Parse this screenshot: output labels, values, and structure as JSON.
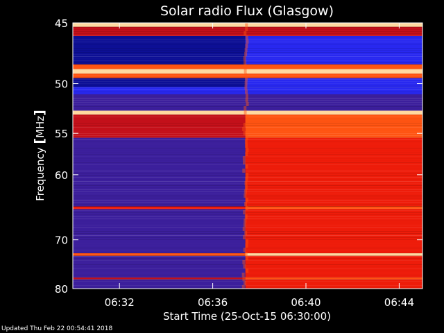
{
  "chart_data": {
    "type": "heatmap",
    "title": "Solar radio Flux (Glasgow)",
    "xlabel": "Start Time (25-Oct-15 06:30:00)",
    "ylabel_prefix": "Frequency ",
    "ylabel_unit": "MHz",
    "x_ticks": [
      "06:32",
      "06:36",
      "06:40",
      "06:44"
    ],
    "x_tick_minutes": [
      2,
      6,
      10,
      14
    ],
    "xlim_minutes": [
      0,
      15
    ],
    "y_ticks": [
      "45",
      "50",
      "55",
      "60",
      "70",
      "80"
    ],
    "y_tick_values": [
      45,
      50,
      55,
      60,
      70,
      80
    ],
    "ylim": [
      45,
      80
    ],
    "y_scale": "reciprocal",
    "event_onset_minute": 7.4,
    "colors": {
      "deep_blue": "#0d0f95",
      "bright_blue": "#2828f0",
      "purple": "#3c1f9c",
      "dark_red": "#c4101a",
      "red": "#ee1c0a",
      "orange": "#ff5412",
      "pale": "#ffd9a0"
    },
    "bands": [
      {
        "from": 45.0,
        "to": 45.3,
        "level": "pale"
      },
      {
        "from": 45.3,
        "to": 46.0,
        "level": "dark_red"
      },
      {
        "from": 46.0,
        "to": 48.3,
        "level": "deep_blue"
      },
      {
        "from": 48.3,
        "to": 48.7,
        "level": "orange"
      },
      {
        "from": 48.7,
        "to": 49.1,
        "level": "pale"
      },
      {
        "from": 49.1,
        "to": 49.5,
        "level": "orange"
      },
      {
        "from": 49.5,
        "to": 50.3,
        "level": "deep_blue"
      },
      {
        "from": 50.3,
        "to": 51.0,
        "level": "bright_blue"
      },
      {
        "from": 51.0,
        "to": 52.6,
        "level": "purple"
      },
      {
        "from": 52.6,
        "to": 53.0,
        "level": "pale"
      },
      {
        "from": 53.0,
        "to": 55.5,
        "level": "dark_red"
      },
      {
        "from": 55.5,
        "to": 64.5,
        "level": "purple"
      },
      {
        "from": 64.5,
        "to": 64.9,
        "level": "red"
      },
      {
        "from": 64.9,
        "to": 72.5,
        "level": "purple"
      },
      {
        "from": 72.5,
        "to": 73.0,
        "level": "orange"
      },
      {
        "from": 73.0,
        "to": 77.5,
        "level": "purple"
      },
      {
        "from": 77.5,
        "to": 77.9,
        "level": "dark_red"
      },
      {
        "from": 77.9,
        "to": 80.0,
        "level": "purple"
      }
    ],
    "bands_after_onset": [
      {
        "from": 45.0,
        "to": 45.3,
        "level": "pale"
      },
      {
        "from": 45.3,
        "to": 46.0,
        "level": "dark_red"
      },
      {
        "from": 46.0,
        "to": 48.3,
        "level": "bright_blue"
      },
      {
        "from": 48.3,
        "to": 48.7,
        "level": "orange"
      },
      {
        "from": 48.7,
        "to": 49.1,
        "level": "pale"
      },
      {
        "from": 49.1,
        "to": 49.5,
        "level": "orange"
      },
      {
        "from": 49.5,
        "to": 50.3,
        "level": "bright_blue"
      },
      {
        "from": 50.3,
        "to": 51.0,
        "level": "bright_blue"
      },
      {
        "from": 51.0,
        "to": 52.6,
        "level": "purple"
      },
      {
        "from": 52.6,
        "to": 53.0,
        "level": "pale"
      },
      {
        "from": 53.0,
        "to": 55.5,
        "level": "orange"
      },
      {
        "from": 55.5,
        "to": 64.5,
        "level": "red"
      },
      {
        "from": 64.5,
        "to": 64.9,
        "level": "orange"
      },
      {
        "from": 64.9,
        "to": 72.5,
        "level": "red"
      },
      {
        "from": 72.5,
        "to": 73.0,
        "level": "pale"
      },
      {
        "from": 73.0,
        "to": 77.5,
        "level": "red"
      },
      {
        "from": 77.5,
        "to": 77.9,
        "level": "orange"
      },
      {
        "from": 77.9,
        "to": 80.0,
        "level": "red"
      }
    ]
  },
  "footer": "Updated Thu Feb 22 00:54:41 2018"
}
